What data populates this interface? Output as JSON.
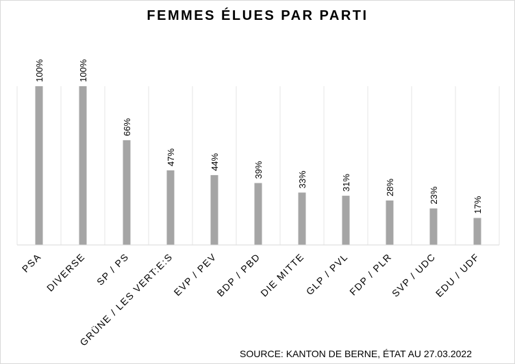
{
  "chart_data": {
    "type": "bar",
    "title": "FEMMES ÉLUES PAR PARTI",
    "categories": [
      "PSA",
      "DIVERSE",
      "SP / PS",
      "GRÜNE / LES VERT:E:S",
      "EVP / PEV",
      "BDP / PBD",
      "DIE MITTE",
      "GLP / PVL",
      "FDP / PLR",
      "SVP / UDC",
      "EDU / UDF"
    ],
    "values": [
      100,
      100,
      66,
      47,
      44,
      39,
      33,
      31,
      28,
      23,
      17
    ],
    "data_labels": [
      "100%",
      "100%",
      "66%",
      "47%",
      "44%",
      "39%",
      "33%",
      "31%",
      "28%",
      "23%",
      "17%"
    ],
    "ylim": [
      0,
      100
    ],
    "xlabel": "",
    "ylabel": "",
    "grid": false,
    "legend": "none",
    "bar_color": "#a5a5a5",
    "source": "SOURCE: KANTON DE BERNE, ÉTAT AU 27.03.2022"
  }
}
